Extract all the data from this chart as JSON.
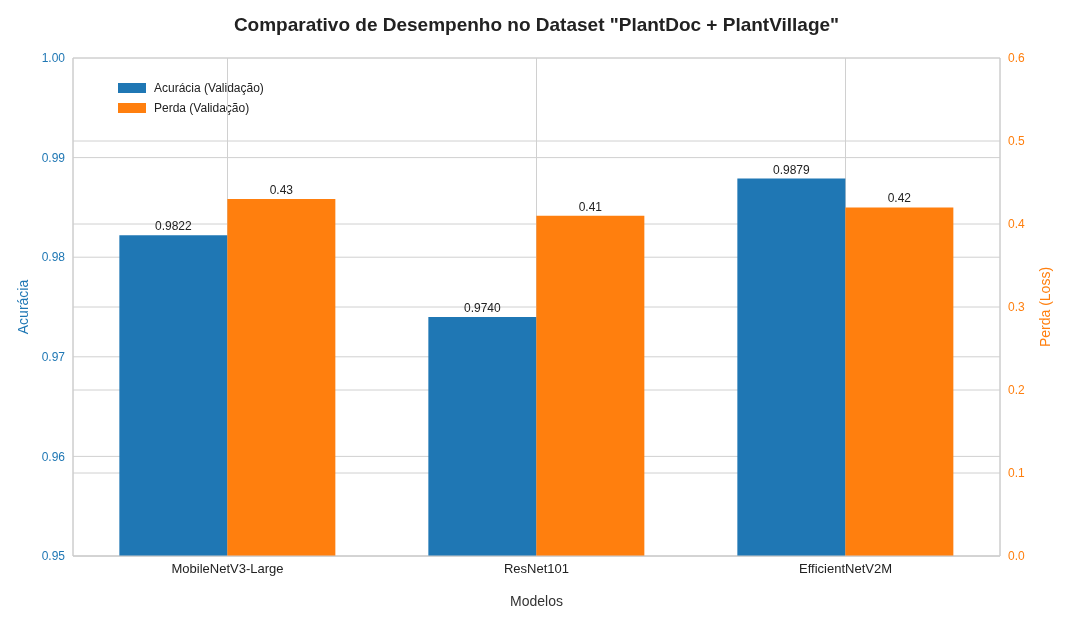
{
  "chart_data": {
    "type": "bar",
    "title": "Comparativo de Desempenho no Dataset \"PlantDoc + PlantVillage\"",
    "xlabel": "Modelos",
    "ylabel": "Acurácia",
    "y2label": "Perda (Loss)",
    "categories": [
      "MobileNetV3-Large",
      "ResNet101",
      "EfficientNetV2M"
    ],
    "series": [
      {
        "name": "Acurácia (Validação)",
        "color": "#1f77b4",
        "values": [
          0.9822,
          0.974,
          0.9879
        ],
        "value_labels": [
          "0.9822",
          "0.9740",
          "0.9879"
        ]
      },
      {
        "name": "Perda (Validação)",
        "color": "#ff7f0e",
        "axis": "y2",
        "values": [
          0.43,
          0.41,
          0.42
        ],
        "value_labels": [
          "0.43",
          "0.41",
          "0.42"
        ]
      }
    ],
    "ylim": [
      0.95,
      1.0
    ],
    "yticks": [
      0.95,
      0.96,
      0.97,
      0.98,
      0.99,
      {
        "value": 1.0,
        "label": "1.00"
      }
    ],
    "y2lim": [
      0.0,
      0.6
    ],
    "y2ticks": [
      {
        "value": 0,
        "label": "0.0"
      },
      0.1,
      0.2,
      0.3,
      0.4,
      0.5,
      0.6
    ],
    "grid": true,
    "legend": "top left"
  }
}
